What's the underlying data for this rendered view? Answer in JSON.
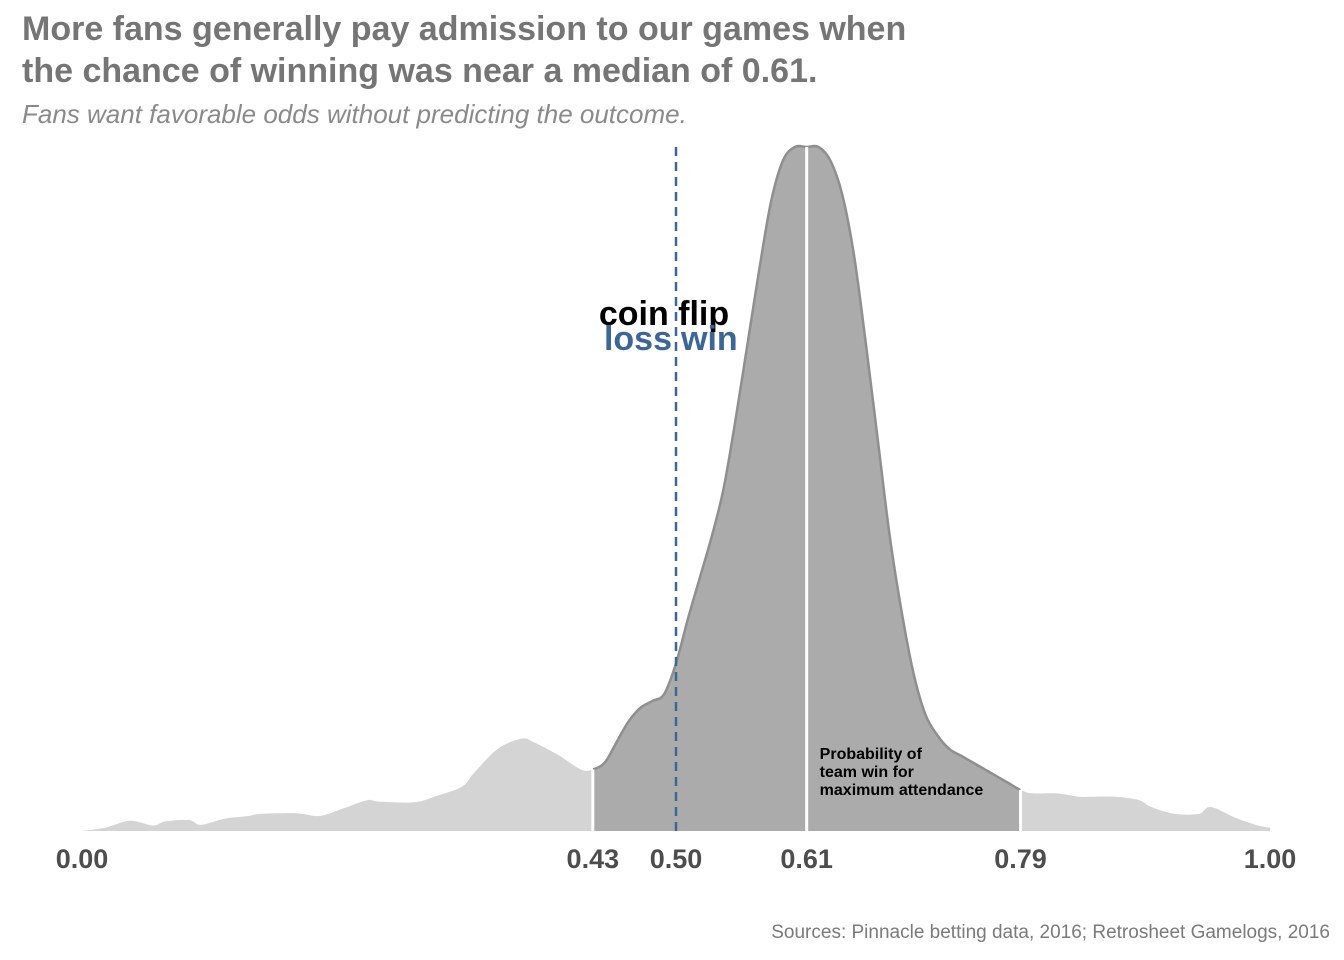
{
  "title": {
    "line1": "More fans generally pay admission to our games when",
    "line2": "the chance of winning was near a median of 0.61."
  },
  "subtitle": "Fans want favorable odds without predicting the outcome.",
  "source": "Sources: Pinnacle betting data, 2016; Retrosheet Gamelogs, 2016",
  "chart_data": {
    "type": "area",
    "subtype": "density",
    "xlim": [
      0,
      1
    ],
    "x_ticks": [
      0.0,
      0.43,
      0.5,
      0.61,
      0.79,
      1.0
    ],
    "x_tick_labels": [
      "0.00",
      "0.43",
      "0.50",
      "0.61",
      "0.79",
      "1.00"
    ],
    "y_axis_shown": false,
    "grid": false,
    "density_peak": 1.0,
    "density": {
      "x": [
        0.0,
        0.02,
        0.04,
        0.06,
        0.07,
        0.09,
        0.1,
        0.12,
        0.14,
        0.15,
        0.18,
        0.2,
        0.22,
        0.24,
        0.25,
        0.28,
        0.3,
        0.32,
        0.33,
        0.35,
        0.37,
        0.38,
        0.4,
        0.42,
        0.43,
        0.44,
        0.45,
        0.46,
        0.47,
        0.48,
        0.49,
        0.5,
        0.51,
        0.52,
        0.53,
        0.54,
        0.55,
        0.56,
        0.57,
        0.58,
        0.59,
        0.6,
        0.61,
        0.62,
        0.63,
        0.64,
        0.65,
        0.66,
        0.67,
        0.68,
        0.69,
        0.7,
        0.71,
        0.72,
        0.73,
        0.74,
        0.75,
        0.76,
        0.77,
        0.78,
        0.79,
        0.8,
        0.82,
        0.84,
        0.85,
        0.87,
        0.89,
        0.9,
        0.92,
        0.94,
        0.95,
        0.97,
        0.99,
        1.0
      ],
      "y": [
        0.0,
        0.005,
        0.015,
        0.008,
        0.014,
        0.016,
        0.009,
        0.018,
        0.022,
        0.025,
        0.026,
        0.022,
        0.033,
        0.045,
        0.043,
        0.042,
        0.052,
        0.065,
        0.085,
        0.12,
        0.135,
        0.13,
        0.112,
        0.09,
        0.09,
        0.1,
        0.13,
        0.16,
        0.18,
        0.19,
        0.2,
        0.245,
        0.31,
        0.37,
        0.43,
        0.5,
        0.6,
        0.71,
        0.82,
        0.92,
        0.98,
        1.0,
        1.0,
        1.0,
        0.98,
        0.93,
        0.84,
        0.71,
        0.57,
        0.43,
        0.32,
        0.23,
        0.17,
        0.14,
        0.12,
        0.11,
        0.1,
        0.09,
        0.08,
        0.07,
        0.06,
        0.055,
        0.055,
        0.05,
        0.05,
        0.05,
        0.045,
        0.035,
        0.025,
        0.025,
        0.035,
        0.02,
        0.008,
        0.005
      ]
    },
    "highlight_range": [
      0.43,
      0.79
    ],
    "median": 0.61,
    "reference_line": 0.5,
    "annotations": {
      "coin_flip": "coin flip",
      "loss": "loss",
      "win": "win",
      "median_label": [
        "Probability of",
        "team win for",
        "maximum attendance"
      ]
    },
    "colors": {
      "tails": "#d4d4d4",
      "highlight": "#ababab",
      "outline": "#8f8f8f",
      "reference_line": "#3b6696",
      "title_text": "#757575",
      "tick_text": "#4d4d4d"
    }
  }
}
